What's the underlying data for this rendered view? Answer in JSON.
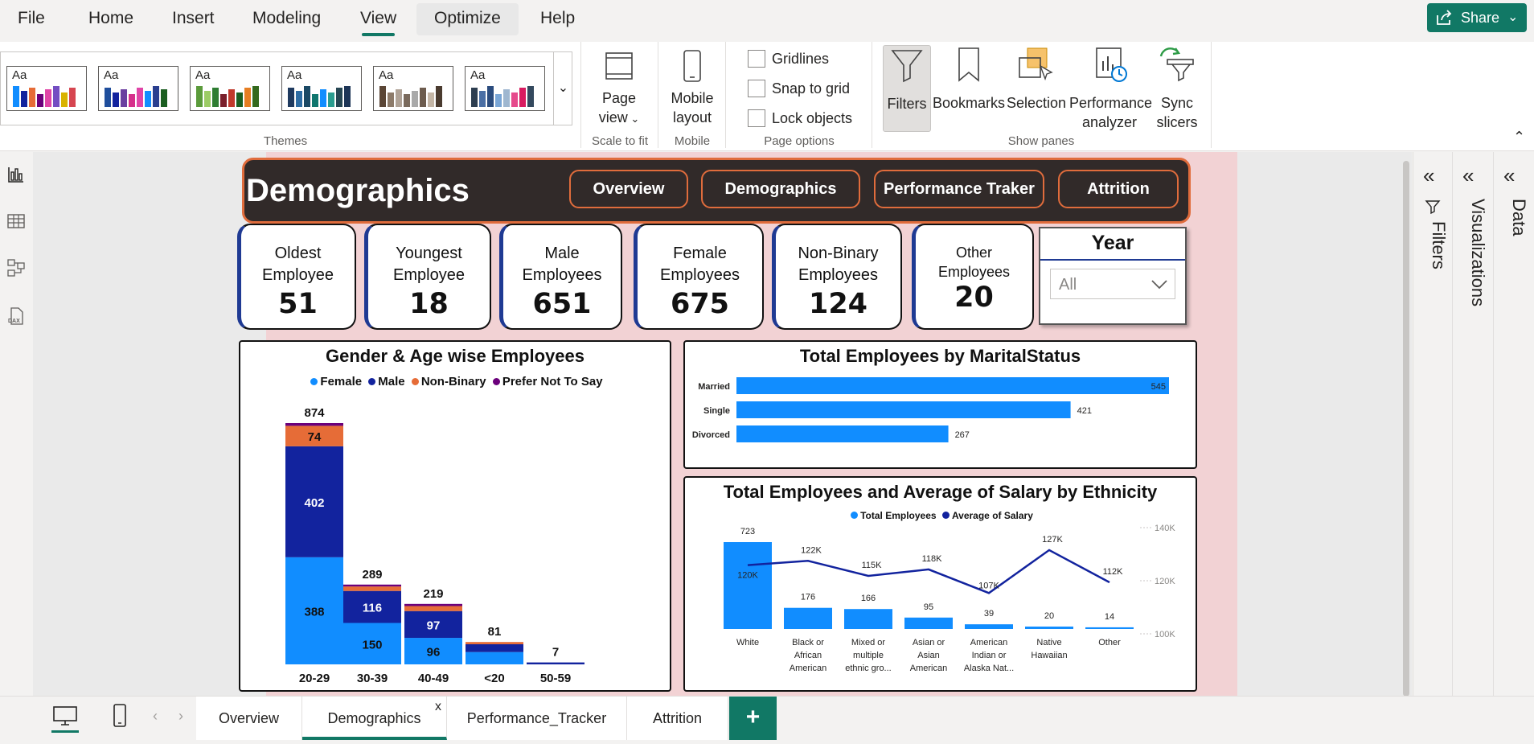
{
  "menu": {
    "items": [
      "File",
      "Home",
      "Insert",
      "Modeling",
      "View",
      "Optimize",
      "Help"
    ],
    "share": "Share"
  },
  "ribbon": {
    "themes_label": "Themes",
    "theme_aa": "Aa",
    "page_view": [
      "Page",
      "view"
    ],
    "scale_label": "Scale to fit",
    "mobile": [
      "Mobile",
      "layout"
    ],
    "mobile_label": "Mobile",
    "options": [
      "Gridlines",
      "Snap to grid",
      "Lock objects"
    ],
    "options_label": "Page options",
    "panes": {
      "filters": "Filters",
      "bookmarks": "Bookmarks",
      "selection": "Selection",
      "performance": [
        "Performance",
        "analyzer"
      ],
      "sync": [
        "Sync",
        "slicers"
      ]
    },
    "panes_label": "Show panes"
  },
  "right_panes": [
    "Filters",
    "Visualizations",
    "Data"
  ],
  "page_tabs": [
    "Overview",
    "Demographics",
    "Performance_Tracker",
    "Attrition"
  ],
  "page_tab_close": "x",
  "page_tab_add": "+",
  "report": {
    "title": "Demographics",
    "nav": [
      "Overview",
      "Demographics",
      "Performance Traker",
      "Attrition"
    ],
    "kpis": [
      {
        "label": [
          "Oldest",
          "Employee"
        ],
        "value": "51"
      },
      {
        "label": [
          "Youngest",
          "Employee"
        ],
        "value": "18"
      },
      {
        "label": [
          "Male",
          "Employees"
        ],
        "value": "651"
      },
      {
        "label": [
          "Female",
          "Employees"
        ],
        "value": "675"
      },
      {
        "label": [
          "Non-Binary",
          "Employees"
        ],
        "value": "124"
      },
      {
        "label": [
          "Other",
          "Employees"
        ],
        "value": "20"
      }
    ],
    "slicer": {
      "title": "Year",
      "value": "All"
    }
  },
  "chart_data": [
    {
      "type": "bar",
      "title": "Gender & Age wise Employees",
      "stacked": true,
      "categories": [
        "20-29",
        "30-39",
        "40-49",
        "<20",
        "50-59"
      ],
      "series": [
        {
          "name": "Female",
          "values": [
            388,
            150,
            96,
            null,
            null
          ],
          "color": "#118dff"
        },
        {
          "name": "Male",
          "values": [
            402,
            116,
            97,
            null,
            null
          ],
          "color": "#12239e"
        },
        {
          "name": "Non-Binary",
          "values": [
            74,
            null,
            null,
            null,
            null
          ],
          "color": "#e66c37"
        },
        {
          "name": "Prefer Not To Say",
          "values": [
            null,
            null,
            null,
            null,
            null
          ],
          "color": "#6b007b"
        }
      ],
      "totals": [
        874,
        289,
        219,
        81,
        7
      ],
      "ylim": [
        0,
        874
      ],
      "legend": "top"
    },
    {
      "type": "bar",
      "orientation": "horizontal",
      "title": "Total Employees by MaritalStatus",
      "categories": [
        "Married",
        "Single",
        "Divorced"
      ],
      "values": [
        545,
        421,
        267
      ],
      "color": "#118dff"
    },
    {
      "type": "bar",
      "title": "Total Employees and Average of Salary by Ethnicity",
      "categories": [
        [
          "White"
        ],
        [
          "Black or",
          "African",
          "American"
        ],
        [
          "Mixed or",
          "multiple",
          "ethnic gro..."
        ],
        [
          "Asian or",
          "Asian",
          "American"
        ],
        [
          "American",
          "Indian or",
          "Alaska Nat..."
        ],
        [
          "Native",
          "Hawaiian"
        ],
        [
          "Other"
        ]
      ],
      "series": [
        {
          "name": "Total Employees",
          "values": [
            723,
            176,
            166,
            95,
            39,
            20,
            14
          ],
          "color": "#118dff"
        },
        {
          "name": "Average of Salary",
          "type": "line",
          "values": [
            "120K",
            "122K",
            "115K",
            "118K",
            "107K",
            "127K",
            "112K"
          ],
          "color": "#12239e"
        }
      ],
      "y2_ticks": [
        "140K",
        "120K",
        "100K"
      ],
      "legend": "top"
    }
  ]
}
